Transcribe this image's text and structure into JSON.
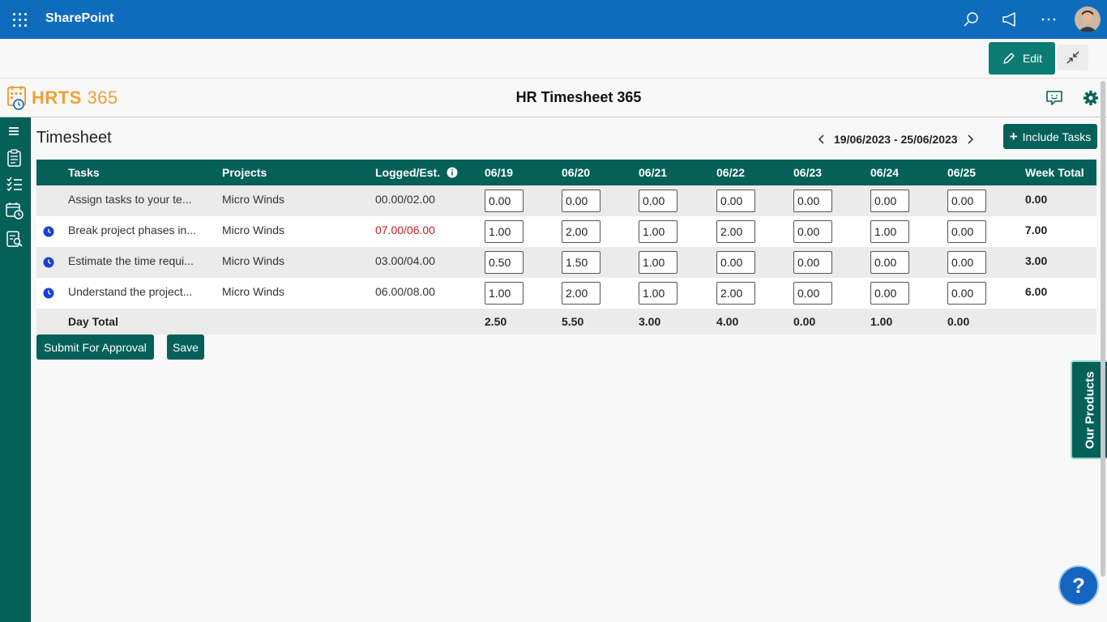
{
  "topbar": {
    "app_name": "SharePoint",
    "brand_color": "#0f6cbd"
  },
  "edit_bar": {
    "edit_label": "Edit"
  },
  "app_header": {
    "logo_text": "HRTS",
    "logo_number": "365",
    "title": "HR Timesheet 365"
  },
  "sidebar": {
    "icons": [
      "menu-icon",
      "clipboard-icon",
      "task-list-icon",
      "calendar-clock-icon",
      "report-search-icon"
    ]
  },
  "page": {
    "title": "Timesheet",
    "week_range": "19/06/2023 - 25/06/2023",
    "include_tasks_label": "Include Tasks",
    "accent_color": "#05605a"
  },
  "table": {
    "headers": {
      "tasks": "Tasks",
      "projects": "Projects",
      "logged": "Logged/Est.",
      "days": [
        "06/19",
        "06/20",
        "06/21",
        "06/22",
        "06/23",
        "06/24",
        "06/25"
      ],
      "week_total": "Week Total"
    },
    "rows": [
      {
        "icon": false,
        "task": "Assign tasks to your te...",
        "project": "Micro Winds",
        "logged": "00.00/02.00",
        "over": false,
        "hours": [
          "0.00",
          "0.00",
          "0.00",
          "0.00",
          "0.00",
          "0.00",
          "0.00"
        ],
        "total": "0.00"
      },
      {
        "icon": true,
        "task": "Break project phases in...",
        "project": "Micro Winds",
        "logged": "07.00/06.00",
        "over": true,
        "hours": [
          "1.00",
          "2.00",
          "1.00",
          "2.00",
          "0.00",
          "1.00",
          "0.00"
        ],
        "total": "7.00"
      },
      {
        "icon": true,
        "task": "Estimate the time requi...",
        "project": "Micro Winds",
        "logged": "03.00/04.00",
        "over": false,
        "hours": [
          "0.50",
          "1.50",
          "1.00",
          "0.00",
          "0.00",
          "0.00",
          "0.00"
        ],
        "total": "3.00"
      },
      {
        "icon": true,
        "task": "Understand the project...",
        "project": "Micro Winds",
        "logged": "06.00/08.00",
        "over": false,
        "hours": [
          "1.00",
          "2.00",
          "1.00",
          "2.00",
          "0.00",
          "0.00",
          "0.00"
        ],
        "total": "6.00"
      }
    ],
    "day_total": {
      "label": "Day Total",
      "values": [
        "2.50",
        "5.50",
        "3.00",
        "4.00",
        "0.00",
        "1.00",
        "0.00"
      ]
    }
  },
  "actions": {
    "submit_label": "Submit For Approval",
    "save_label": "Save"
  },
  "side_tab": {
    "label": "Our Products"
  },
  "help": {
    "label": "?"
  }
}
